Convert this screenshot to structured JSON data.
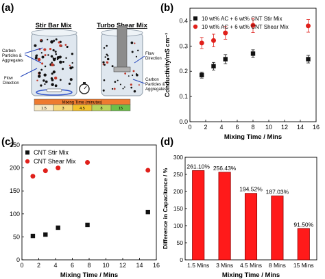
{
  "panel_labels": {
    "a": "(a)",
    "b": "(b)",
    "c": "(c)",
    "d": "(d)"
  },
  "panel_a": {
    "stir_title": "Stir Bar Mix",
    "turbo_title": "Turbo Shear Mix",
    "stir_carbon_label": "Carbon Particles & Aggregates",
    "stir_flow_label": "Flow Direction",
    "turbo_flow_label": "Flow Direction",
    "turbo_carbon_label": "Carbon Particles & Aggregates",
    "mixing_time_header": "Mixing Time (minutes)",
    "mixing_times": [
      "1.5",
      "3",
      "4.5",
      "8",
      "15"
    ],
    "mixing_time_colors": [
      "#f7e9c4",
      "#f5d77b",
      "#f2c02c",
      "#b8d35b",
      "#6cc04a"
    ],
    "header_color": "#ee7b30",
    "timer_icon": "stopwatch-icon"
  },
  "colors": {
    "black": "#111111",
    "red": "#e0201b",
    "bar_fill": "#ff1a1a",
    "bar_stroke": "#8b0000"
  },
  "chart_data": [
    {
      "type": "scatter",
      "panel": "b",
      "xlabel": "Mixing Time / Mins",
      "ylabel": "Conductivity/mS cm⁻¹",
      "xlim": [
        0,
        16
      ],
      "ylim": [
        0.0,
        0.45
      ],
      "xticks": [
        0,
        2,
        4,
        6,
        8,
        10,
        12,
        14,
        16
      ],
      "yticks": [
        0.0,
        0.1,
        0.2,
        0.3,
        0.4
      ],
      "grid": false,
      "legend_position": "top-left",
      "series": [
        {
          "name": "10 wt% AC + 6 wt% CNT Stir Mix",
          "marker": "square",
          "color": "#111111",
          "x": [
            1.5,
            3,
            4.5,
            8,
            15
          ],
          "y": [
            0.185,
            0.22,
            0.248,
            0.27,
            0.248
          ],
          "err": [
            0.012,
            0.015,
            0.018,
            0.015,
            0.015
          ]
        },
        {
          "name": "10 wt% AC + 6 wt% CNT Shear Mix",
          "marker": "circle",
          "color": "#e0201b",
          "x": [
            1.5,
            3,
            4.5,
            8,
            15
          ],
          "y": [
            0.312,
            0.322,
            0.352,
            0.382,
            0.38
          ],
          "err": [
            0.022,
            0.025,
            0.025,
            0.028,
            0.025
          ]
        }
      ]
    },
    {
      "type": "scatter",
      "panel": "c",
      "xlabel": "Mixing Time / Mins",
      "ylabel": "",
      "xlim": [
        0,
        16
      ],
      "ylim": [
        0,
        250
      ],
      "xticks": [
        0,
        2,
        4,
        6,
        8,
        10,
        12,
        14,
        16
      ],
      "yticks": [
        0,
        50,
        100,
        150,
        200,
        250
      ],
      "grid": false,
      "legend_position": "top-left",
      "series": [
        {
          "name": "CNT Stir Mix",
          "marker": "square",
          "color": "#111111",
          "x": [
            1.3,
            2.8,
            4.3,
            7.8,
            15
          ],
          "y": [
            52,
            55,
            70,
            76,
            104
          ]
        },
        {
          "name": "CNT Shear Mix",
          "marker": "circle",
          "color": "#e0201b",
          "x": [
            1.3,
            2.8,
            4.3,
            7.8,
            15
          ],
          "y": [
            182,
            194,
            200,
            212,
            195
          ]
        }
      ]
    },
    {
      "type": "bar",
      "panel": "d",
      "xlabel": "Mixing Time / Mins",
      "ylabel": "Difference in Capacitance / %",
      "ylim": [
        0,
        300
      ],
      "yticks": [
        0,
        50,
        100,
        150,
        200,
        250,
        300
      ],
      "categories": [
        "1.5 Mins",
        "3 Mins",
        "4.5 Mins",
        "8 Mins",
        "15 Mins"
      ],
      "values": [
        261.1,
        256.43,
        194.52,
        187.03,
        91.5
      ],
      "data_labels": [
        "261.10%",
        "256.43%",
        "194.52%",
        "187.03%",
        "91.50%"
      ]
    }
  ]
}
